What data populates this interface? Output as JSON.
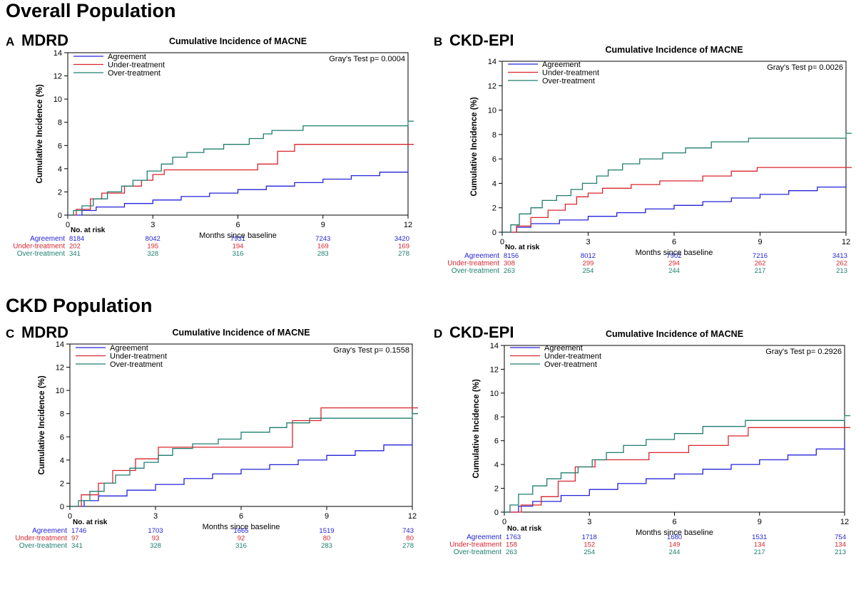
{
  "sections": {
    "overall": "Overall Population",
    "ckd": "CKD Population"
  },
  "colors": {
    "Agreement": "#2424d8",
    "Under-treatment": "#d8262e",
    "Over-treatment": "#1e7e6e"
  },
  "chart_data": [
    {
      "type": "line",
      "panel_letter": "A",
      "panel_name": "MDRD",
      "title": "Cumulative Incidence of MACNE",
      "xlabel": "Months since baseline",
      "ylabel": "Cumulative Incidence (%)",
      "xlim": [
        0,
        12
      ],
      "ylim": [
        0,
        14
      ],
      "xticks": [
        0,
        3,
        6,
        9,
        12
      ],
      "yticks": [
        0,
        2,
        4,
        6,
        8,
        10,
        12,
        14
      ],
      "grid": false,
      "legend_position": "top-left",
      "annotation": "Gray's Test p= 0.0004",
      "series": [
        {
          "name": "Agreement",
          "x": [
            0,
            0.5,
            1,
            2,
            3,
            4,
            5,
            6,
            7,
            8,
            9,
            10,
            11,
            12
          ],
          "y": [
            0,
            0.4,
            0.7,
            1.0,
            1.3,
            1.6,
            1.9,
            2.2,
            2.5,
            2.8,
            3.1,
            3.4,
            3.7,
            4.0
          ]
        },
        {
          "name": "Under-treatment",
          "x": [
            0,
            0.3,
            0.8,
            1.2,
            2.0,
            2.6,
            3.0,
            3.4,
            6.7,
            7.4,
            8.0,
            12.2
          ],
          "y": [
            0,
            0.5,
            1.4,
            1.9,
            2.5,
            3.0,
            3.5,
            3.9,
            4.4,
            5.5,
            6.1,
            6.1
          ]
        },
        {
          "name": "Over-treatment",
          "x": [
            0,
            0.2,
            0.5,
            0.9,
            1.4,
            1.9,
            2.3,
            2.8,
            3.3,
            3.7,
            4.2,
            4.8,
            5.5,
            6.4,
            6.9,
            7.2,
            8.3,
            9.0,
            12.0,
            12.2
          ],
          "y": [
            0,
            0.4,
            0.8,
            1.4,
            2.0,
            2.5,
            3.0,
            3.8,
            4.4,
            5.0,
            5.4,
            5.7,
            6.1,
            6.6,
            7.0,
            7.3,
            7.7,
            7.7,
            8.1,
            8.1
          ]
        }
      ],
      "risk_table": {
        "header": "No. at risk",
        "rows": [
          {
            "label": "Agreement",
            "values": [
              "8184",
              "8042",
              "7931",
              "7243",
              "3420"
            ]
          },
          {
            "label": "Under-treatment",
            "values": [
              "202",
              "195",
              "194",
              "169",
              "169"
            ]
          },
          {
            "label": "Over-treatment",
            "values": [
              "341",
              "328",
              "316",
              "283",
              "278"
            ]
          }
        ]
      }
    },
    {
      "type": "line",
      "panel_letter": "B",
      "panel_name": "CKD-EPI",
      "title": "Cumulative Incidence of MACNE",
      "xlabel": "Months since baseline",
      "ylabel": "Cumulative Incidence (%)",
      "xlim": [
        0,
        12
      ],
      "ylim": [
        0,
        14
      ],
      "xticks": [
        0,
        3,
        6,
        9,
        12
      ],
      "yticks": [
        0,
        2,
        4,
        6,
        8,
        10,
        12,
        14
      ],
      "grid": false,
      "legend_position": "top-left",
      "annotation": "Gray's Test p= 0.0026",
      "series": [
        {
          "name": "Agreement",
          "x": [
            0,
            0.5,
            1,
            2,
            3,
            4,
            5,
            6,
            7,
            8,
            9,
            10,
            11,
            12
          ],
          "y": [
            0,
            0.4,
            0.7,
            1.0,
            1.3,
            1.6,
            1.9,
            2.2,
            2.5,
            2.8,
            3.1,
            3.4,
            3.7,
            4.0
          ]
        },
        {
          "name": "Under-treatment",
          "x": [
            0,
            0.5,
            1.0,
            1.6,
            2.2,
            2.6,
            3.0,
            3.5,
            4.5,
            5.5,
            7.0,
            8.0,
            8.9,
            12.2
          ],
          "y": [
            0,
            0.5,
            1.2,
            1.8,
            2.3,
            2.9,
            3.2,
            3.6,
            3.9,
            4.2,
            4.6,
            5.0,
            5.3,
            5.3
          ]
        },
        {
          "name": "Over-treatment",
          "x": [
            0,
            0.3,
            0.6,
            1.0,
            1.4,
            1.9,
            2.4,
            2.8,
            3.3,
            3.7,
            4.2,
            4.8,
            5.6,
            6.4,
            7.3,
            8.6,
            12.0,
            12.2
          ],
          "y": [
            0,
            0.6,
            1.5,
            2.0,
            2.6,
            3.0,
            3.5,
            4.0,
            4.6,
            5.1,
            5.6,
            6.0,
            6.5,
            6.9,
            7.4,
            7.7,
            8.1,
            8.1
          ]
        }
      ],
      "risk_table": {
        "header": "No. at risk",
        "rows": [
          {
            "label": "Agreement",
            "values": [
              "8156",
              "8012",
              "7902",
              "7216",
              "3413"
            ]
          },
          {
            "label": "Under-treatment",
            "values": [
              "308",
              "299",
              "294",
              "262",
              "262"
            ]
          },
          {
            "label": "Over-treatment",
            "values": [
              "263",
              "254",
              "244",
              "217",
              "213"
            ]
          }
        ]
      }
    },
    {
      "type": "line",
      "panel_letter": "C",
      "panel_name": "MDRD",
      "title": "Cumulative Incidence of MACNE",
      "xlabel": "Months since baseline",
      "ylabel": "Cumulative Incidence (%)",
      "xlim": [
        0,
        12
      ],
      "ylim": [
        0,
        14
      ],
      "xticks": [
        0,
        3,
        6,
        9,
        12
      ],
      "yticks": [
        0,
        2,
        4,
        6,
        8,
        10,
        12,
        14
      ],
      "grid": false,
      "legend_position": "top-left",
      "annotation": "Gray's Test p= 0.1558",
      "series": [
        {
          "name": "Agreement",
          "x": [
            0,
            0.5,
            1,
            2,
            3,
            4,
            5,
            6,
            7,
            8,
            9,
            10,
            11,
            12
          ],
          "y": [
            0,
            0.5,
            0.9,
            1.4,
            1.9,
            2.4,
            2.8,
            3.2,
            3.6,
            4.0,
            4.4,
            4.8,
            5.3,
            5.8
          ]
        },
        {
          "name": "Under-treatment",
          "x": [
            0,
            0.4,
            1.0,
            1.5,
            2.3,
            3.1,
            7.3,
            7.8,
            8.8,
            12.2
          ],
          "y": [
            0,
            1.0,
            2.0,
            3.1,
            4.1,
            5.1,
            5.1,
            7.4,
            8.5,
            8.5
          ]
        },
        {
          "name": "Over-treatment",
          "x": [
            0,
            0.3,
            0.7,
            1.2,
            1.6,
            2.1,
            2.6,
            3.1,
            3.6,
            4.3,
            5.2,
            6.0,
            7.0,
            7.6,
            8.4,
            12.0,
            12.2
          ],
          "y": [
            0,
            0.5,
            1.3,
            2.0,
            2.7,
            3.3,
            3.8,
            4.4,
            5.0,
            5.4,
            5.8,
            6.4,
            6.8,
            7.2,
            7.6,
            8.0,
            8.0
          ]
        }
      ],
      "risk_table": {
        "header": "No. at risk",
        "rows": [
          {
            "label": "Agreement",
            "values": [
              "1746",
              "1703",
              "1665",
              "1519",
              "743"
            ]
          },
          {
            "label": "Under-treatment",
            "values": [
              "97",
              "93",
              "92",
              "80",
              "80"
            ]
          },
          {
            "label": "Over-treatment",
            "values": [
              "341",
              "328",
              "316",
              "283",
              "278"
            ]
          }
        ]
      }
    },
    {
      "type": "line",
      "panel_letter": "D",
      "panel_name": "CKD-EPI",
      "title": "Cumulative Incidence of MACNE",
      "xlabel": "Months since baseline",
      "ylabel": "Cumulative Incidence (%)",
      "xlim": [
        0,
        12
      ],
      "ylim": [
        0,
        14
      ],
      "xticks": [
        0,
        3,
        6,
        9,
        12
      ],
      "yticks": [
        0,
        2,
        4,
        6,
        8,
        10,
        12,
        14
      ],
      "grid": false,
      "legend_position": "top-left",
      "annotation": "Gray's Test p= 0.2926",
      "series": [
        {
          "name": "Agreement",
          "x": [
            0,
            0.5,
            1,
            2,
            3,
            4,
            5,
            6,
            7,
            8,
            9,
            10,
            11,
            12
          ],
          "y": [
            0,
            0.5,
            0.9,
            1.4,
            1.9,
            2.4,
            2.8,
            3.2,
            3.6,
            4.0,
            4.4,
            4.8,
            5.3,
            5.9
          ]
        },
        {
          "name": "Under-treatment",
          "x": [
            0,
            0.6,
            1.3,
            1.9,
            2.5,
            3.2,
            4.0,
            5.1,
            6.5,
            7.4,
            7.9,
            8.6,
            12.2
          ],
          "y": [
            0,
            0.6,
            1.3,
            2.6,
            3.8,
            4.4,
            4.4,
            5.0,
            5.6,
            5.6,
            6.4,
            7.1,
            7.1
          ]
        },
        {
          "name": "Over-treatment",
          "x": [
            0,
            0.2,
            0.5,
            1.0,
            1.5,
            2.0,
            2.6,
            3.1,
            3.6,
            4.2,
            5.0,
            6.0,
            7.0,
            8.5,
            12.0,
            12.2
          ],
          "y": [
            0,
            0.6,
            1.5,
            2.2,
            2.8,
            3.3,
            3.8,
            4.4,
            5.0,
            5.6,
            6.1,
            6.6,
            7.2,
            7.7,
            8.1,
            8.1
          ]
        }
      ],
      "risk_table": {
        "header": "No. at risk",
        "rows": [
          {
            "label": "Agreement",
            "values": [
              "1763",
              "1718",
              "1680",
              "1531",
              "754"
            ]
          },
          {
            "label": "Under-treatment",
            "values": [
              "158",
              "152",
              "149",
              "134",
              "134"
            ]
          },
          {
            "label": "Over-treatment",
            "values": [
              "263",
              "254",
              "244",
              "217",
              "213"
            ]
          }
        ]
      }
    }
  ]
}
